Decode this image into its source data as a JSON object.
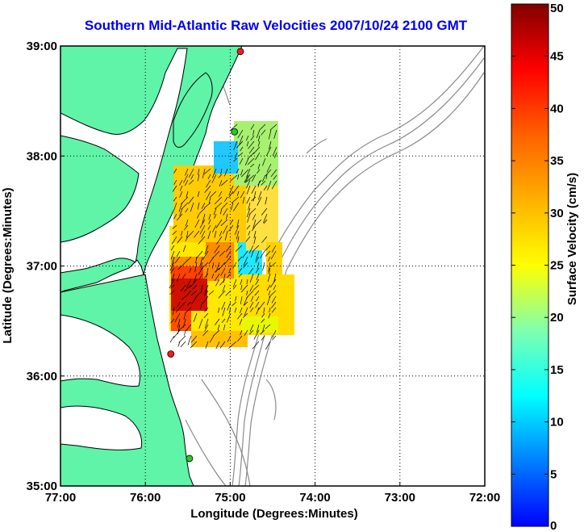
{
  "title": "Southern Mid-Atlantic Raw Velocities 2007/10/24 2100 GMT",
  "map": {
    "xlabel": "Longitude (Degrees:Minutes)",
    "ylabel": "Latitude (Degrees:Minutes)",
    "lon_range": [
      -77,
      -72
    ],
    "lat_range": [
      35,
      39
    ],
    "x_ticks": [
      "77:00",
      "76:00",
      "75:00",
      "74:00",
      "73:00",
      "72:00"
    ],
    "y_ticks": [
      "39:00",
      "38:00",
      "37:00",
      "36:00",
      "35:00"
    ],
    "grid": "dotted",
    "colors": {
      "land": "#5ff4a8",
      "coastline": "#000000",
      "isobaths": "#8a8a8a",
      "station_red": "#ff1a1a",
      "station_green": "#22cc22",
      "vectors": "#000000"
    },
    "stations": [
      {
        "type": "red",
        "lon": -74.88,
        "lat": 38.95
      },
      {
        "type": "green",
        "lon": -74.95,
        "lat": 38.22
      },
      {
        "type": "red",
        "lon": -75.7,
        "lat": 36.2
      },
      {
        "type": "green",
        "lon": -75.48,
        "lat": 35.25
      }
    ]
  },
  "colorbar": {
    "label": "Surface Velocity (cm/s)",
    "min": 0,
    "max": 50,
    "ticks": [
      "0",
      "5",
      "10",
      "15",
      "20",
      "25",
      "30",
      "35",
      "40",
      "45",
      "50"
    ],
    "colormap": "jet"
  }
}
